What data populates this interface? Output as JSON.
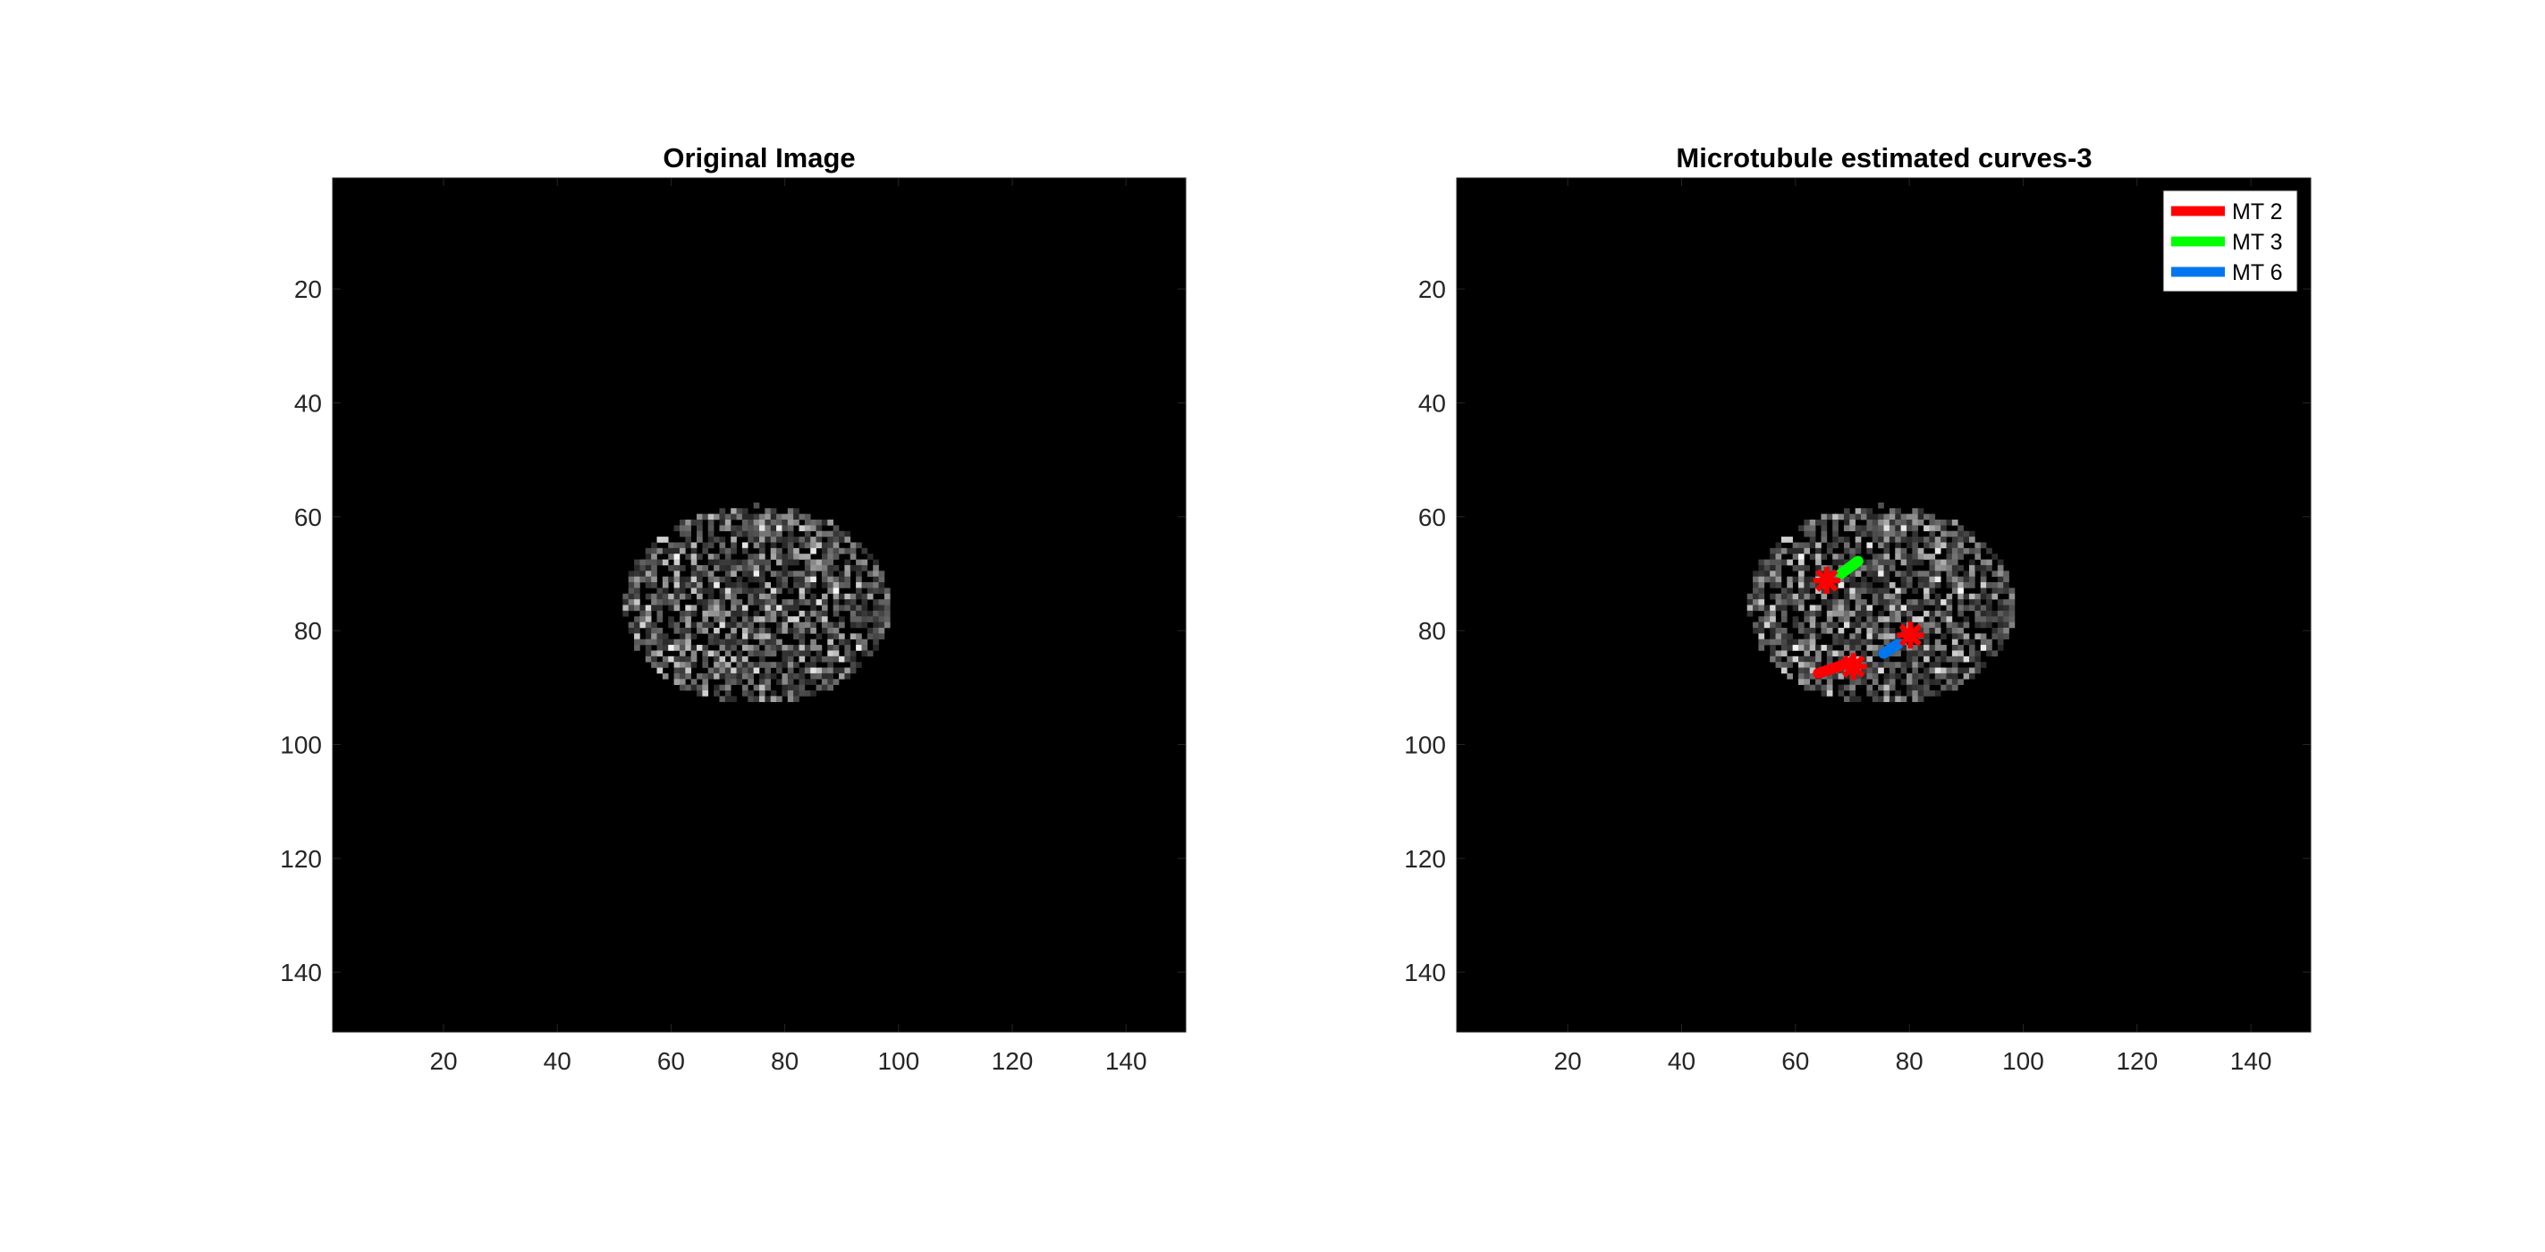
{
  "chart_data": [
    {
      "type": "image",
      "title": "Original Image",
      "xlim": [
        0.5,
        150.5
      ],
      "ylim": [
        0.5,
        150.5
      ],
      "y_direction": "reverse",
      "xticks": [
        20,
        40,
        60,
        80,
        100,
        120,
        140
      ],
      "yticks": [
        20,
        40,
        60,
        80,
        100,
        120,
        140
      ],
      "colormap": "gray",
      "background": "#000000",
      "content": "grayscale speckled ellipse centered near x=75, y=75, spanning x 52-98, y 58-93",
      "series": []
    },
    {
      "type": "image",
      "title": "Microtubule estimated curves-3",
      "xlim": [
        0.5,
        150.5
      ],
      "ylim": [
        0.5,
        150.5
      ],
      "y_direction": "reverse",
      "xticks": [
        20,
        40,
        60,
        80,
        100,
        120,
        140
      ],
      "yticks": [
        20,
        40,
        60,
        80,
        100,
        120,
        140
      ],
      "colormap": "gray",
      "background": "#000000",
      "legend": "top-right",
      "series": [
        {
          "name": "MT 2",
          "color": "#ff0000",
          "x": [
            64,
            70
          ],
          "y": [
            87.5,
            85.5
          ]
        },
        {
          "name": "MT 3",
          "color": "#00ff00",
          "x": [
            68,
            71
          ],
          "y": [
            70,
            67.8
          ]
        },
        {
          "name": "MT 6",
          "color": "#0077ee",
          "x": [
            75.5,
            78
          ],
          "y": [
            84,
            82.4
          ]
        }
      ],
      "markers": [
        {
          "x": 65.5,
          "y": 71.2,
          "color": "#ff0000",
          "symbol": "*"
        },
        {
          "x": 70.2,
          "y": 86.3,
          "color": "#ff0000",
          "symbol": "*"
        },
        {
          "x": 80.2,
          "y": 80.8,
          "color": "#ff0000",
          "symbol": "*"
        }
      ]
    }
  ]
}
